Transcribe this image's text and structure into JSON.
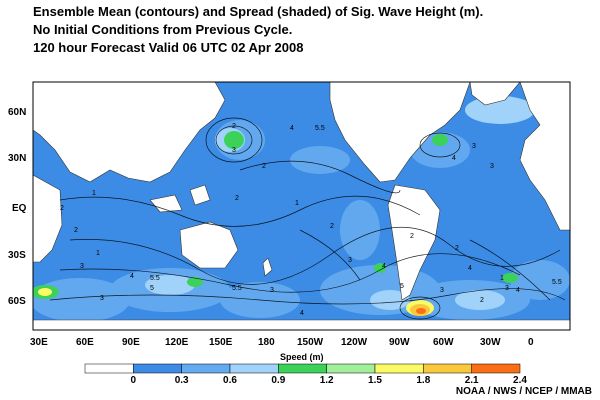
{
  "title_lines": [
    "Ensemble Mean (contours) and Spread (shaded) of Sig. Wave  Height (m).",
    "No Initial Conditions from Previous Cycle.",
    "120 hour Forecast Valid 06 UTC 02 Apr 2008"
  ],
  "lat_labels": [
    "60N",
    "30N",
    "EQ",
    "30S",
    "60S"
  ],
  "lon_labels": [
    "30E",
    "60E",
    "90E",
    "120E",
    "150E",
    "180",
    "150W",
    "120W",
    "90W",
    "60W",
    "30W",
    "0"
  ],
  "colorbar": {
    "label": "Speed (m)",
    "ticks": [
      "0",
      "0.3",
      "0.6",
      "0.9",
      "1.2",
      "1.5",
      "1.8",
      "2.1",
      "2.4"
    ],
    "colors": [
      "#ffffff",
      "#3c8ce6",
      "#64aaf0",
      "#a0d2fa",
      "#3cd25a",
      "#a0f09a",
      "#fafa64",
      "#fac83c",
      "#fa6e14"
    ]
  },
  "contour_labels": [
    "1",
    "2",
    "3",
    "4",
    "5",
    "5.5",
    "2",
    "3",
    "1",
    "2",
    "3",
    "4",
    "5.5",
    "2",
    "1",
    "2",
    "3",
    "4",
    "5",
    "2",
    "3",
    "4",
    "5.5",
    "3",
    "4",
    "2",
    "3",
    "1",
    "2",
    "3",
    "4",
    "5.5",
    "2",
    "3",
    "4"
  ],
  "credit": "NOAA / NWS / NCEP / MMAB"
}
